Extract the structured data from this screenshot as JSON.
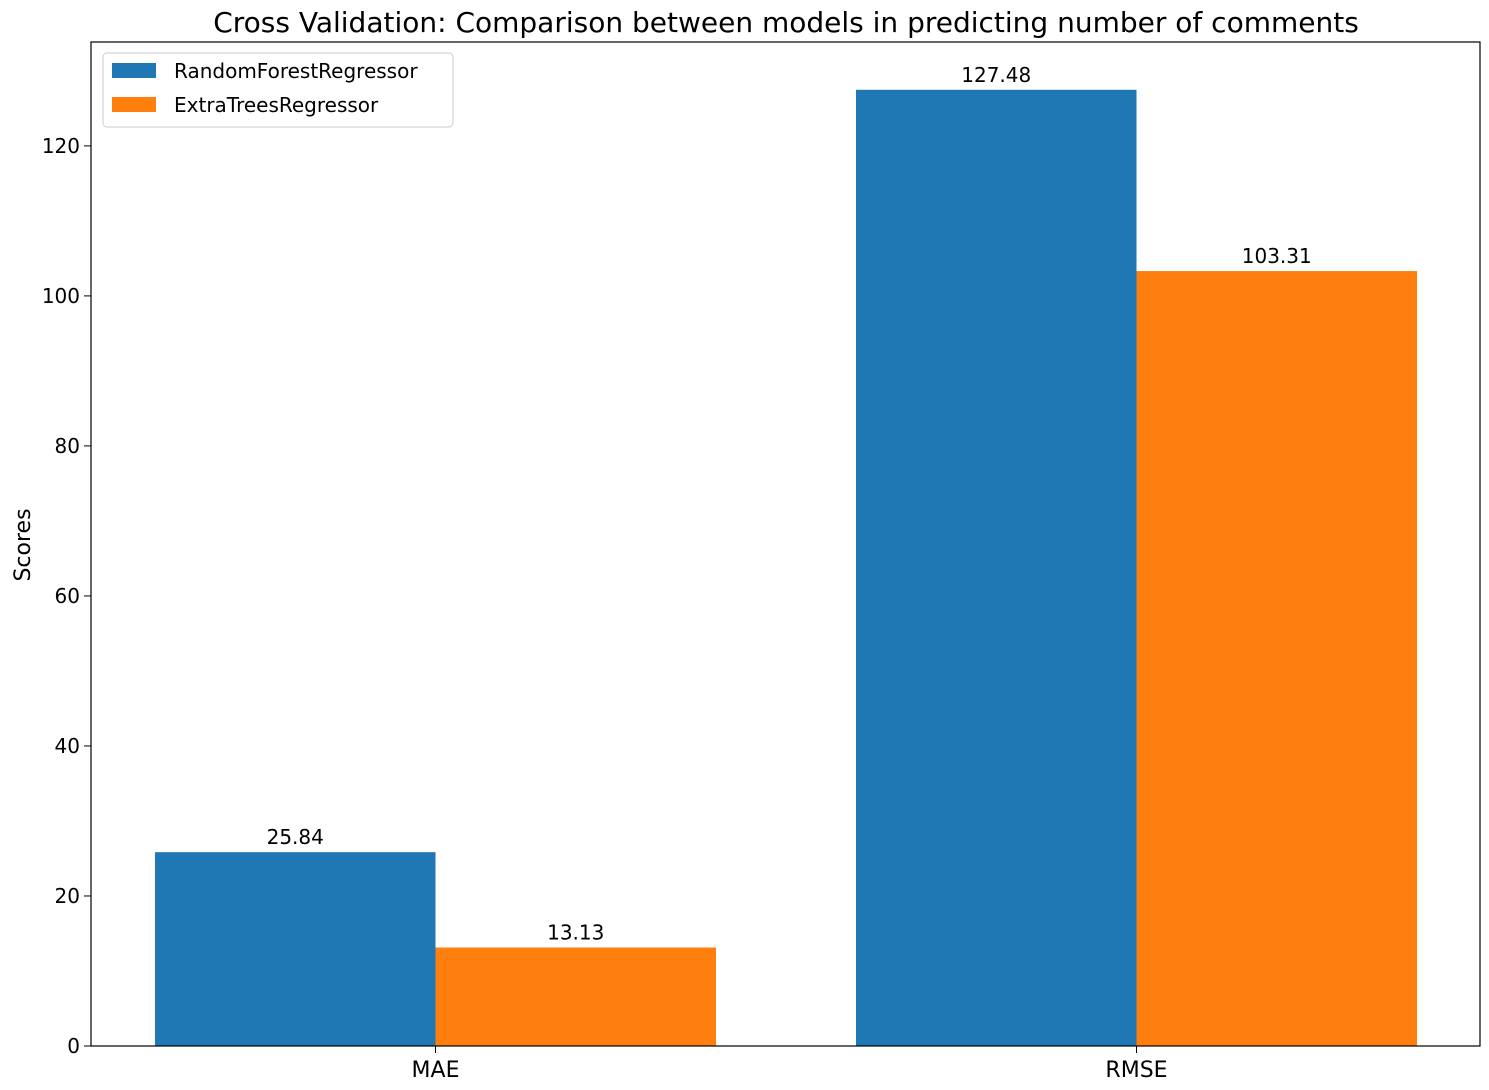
{
  "chart_data": {
    "type": "bar",
    "title": "Cross Validation: Comparison between models in predicting number of comments",
    "xlabel": "",
    "ylabel": "Scores",
    "categories": [
      "MAE",
      "RMSE"
    ],
    "series": [
      {
        "name": "RandomForestRegressor",
        "color": "#1f77b4",
        "values": [
          25.84,
          127.48
        ],
        "labels": [
          "25.84",
          "127.48"
        ]
      },
      {
        "name": "ExtraTreesRegressor",
        "color": "#ff7f0e",
        "values": [
          13.13,
          103.31
        ],
        "labels": [
          "13.13",
          "103.31"
        ]
      }
    ],
    "ylim": [
      0,
      133.85
    ],
    "yticks": [
      0,
      20,
      40,
      60,
      80,
      100,
      120
    ],
    "ytick_labels": [
      "0",
      "20",
      "40",
      "60",
      "80",
      "100",
      "120"
    ],
    "grid": false,
    "legend_position": "top-left"
  }
}
